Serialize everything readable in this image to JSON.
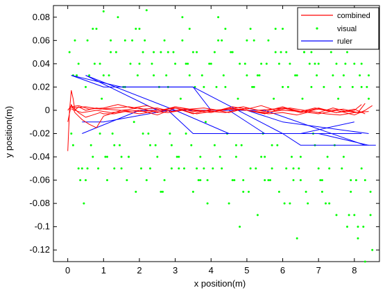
{
  "chart_data": {
    "type": "line",
    "xlabel": "x position(m)",
    "ylabel": "y position(m)",
    "xlim": [
      -0.4,
      8.7
    ],
    "ylim": [
      -0.13,
      0.09
    ],
    "xticks": [
      0,
      1,
      2,
      3,
      4,
      5,
      6,
      7,
      8
    ],
    "yticks": [
      -0.12,
      -0.1,
      -0.08,
      -0.06,
      -0.04,
      -0.02,
      0,
      0.02,
      0.04,
      0.06,
      0.08
    ],
    "ytick_labels": [
      "-0.12",
      "-0.1",
      "-0.08",
      "-0.06",
      "-0.04",
      "-0.02",
      "0",
      "0.02",
      "0.04",
      "0.06",
      "0.08"
    ],
    "grid": false,
    "legend_position": "top-right",
    "colors": {
      "combined": "#ff0000",
      "visual": "#00ff00",
      "ruler": "#0000ff"
    },
    "legend": [
      {
        "label": "combined",
        "kind": "line",
        "color": "#ff0000"
      },
      {
        "label": "visual",
        "kind": "dot",
        "color": "#00ff00"
      },
      {
        "label": "ruler",
        "kind": "line",
        "color": "#0000ff"
      }
    ],
    "ruler_series": [
      {
        "x": [
          0.1,
          1.0,
          3.0,
          3.5,
          6.0,
          6.5,
          8.6
        ],
        "y": [
          0.03,
          0.02,
          0.02,
          0.02,
          -0.02,
          -0.03,
          -0.03
        ]
      },
      {
        "x": [
          0.1,
          1.5,
          3.5,
          4.0,
          5.0,
          6.0,
          8.4
        ],
        "y": [
          0.03,
          0.02,
          0.02,
          0.0,
          0.0,
          -0.01,
          -0.02
        ]
      },
      {
        "x": [
          0.5,
          2.5,
          4.5,
          5.5,
          6.0,
          7.5,
          8.2
        ],
        "y": [
          0.03,
          0.0,
          0.0,
          -0.02,
          -0.02,
          -0.02,
          -0.02
        ]
      },
      {
        "x": [
          0.5,
          3.0,
          5.0,
          5.5,
          8.3
        ],
        "y": [
          0.03,
          0.0,
          0.0,
          0.0,
          -0.03
        ]
      },
      {
        "x": [
          0.4,
          1.0,
          2.8,
          3.5,
          5.0,
          6.5,
          8.0
        ],
        "y": [
          -0.01,
          -0.01,
          0.0,
          -0.02,
          -0.02,
          -0.02,
          -0.01
        ]
      },
      {
        "x": [
          0.4,
          2.0,
          3.0,
          4.5,
          7.0,
          8.4
        ],
        "y": [
          -0.02,
          0.0,
          0.0,
          -0.02,
          -0.02,
          -0.03
        ]
      }
    ],
    "combined_series": [
      {
        "x": [
          0.0,
          0.05,
          0.1,
          0.15,
          0.2,
          0.3,
          0.5,
          0.8,
          1.0,
          1.5,
          2.0,
          2.5,
          3.0,
          3.5,
          4.0,
          4.5,
          5.0,
          5.5,
          6.0,
          6.5,
          7.0,
          7.5,
          8.0,
          8.3,
          8.5
        ],
        "y": [
          -0.035,
          0.0,
          0.017,
          0.01,
          0.0,
          0.003,
          0.0,
          0.002,
          0.001,
          0.0,
          -0.001,
          0.0,
          0.002,
          -0.001,
          0.0,
          0.001,
          0.0,
          -0.002,
          0.0,
          -0.001,
          -0.003,
          0.0,
          -0.004,
          0.0,
          0.004
        ]
      },
      {
        "x": [
          0.0,
          0.1,
          0.2,
          0.4,
          0.6,
          0.8,
          1.0,
          1.5,
          2.0,
          2.5,
          3.0,
          3.5,
          4.0,
          4.5,
          5.0,
          5.5,
          6.0,
          6.5,
          7.0,
          7.5,
          8.0,
          8.2
        ],
        "y": [
          -0.01,
          0.005,
          -0.002,
          -0.008,
          -0.012,
          -0.015,
          -0.005,
          0.0,
          0.002,
          -0.002,
          0.003,
          0.0,
          -0.002,
          0.002,
          0.0,
          -0.003,
          0.002,
          -0.002,
          0.001,
          -0.002,
          0.0,
          0.005
        ]
      },
      {
        "x": [
          0.0,
          0.1,
          0.3,
          0.5,
          0.7,
          0.9,
          1.0,
          1.3,
          1.6,
          2.0,
          2.5,
          3.0,
          3.5,
          4.0,
          4.5,
          5.0,
          5.5,
          6.0,
          6.5,
          7.0,
          7.5,
          8.0,
          8.3
        ],
        "y": [
          0.0,
          0.004,
          -0.002,
          -0.006,
          -0.004,
          -0.002,
          -0.003,
          -0.003,
          -0.001,
          0.0,
          -0.004,
          0.002,
          -0.003,
          0.001,
          -0.002,
          0.002,
          -0.001,
          0.003,
          -0.002,
          0.002,
          -0.002,
          0.001,
          -0.003
        ]
      },
      {
        "x": [
          0.1,
          0.3,
          0.6,
          1.0,
          1.4,
          1.8,
          2.2,
          2.6,
          3.0,
          3.4,
          3.8,
          4.2,
          4.6,
          5.0,
          5.4,
          5.8,
          6.2,
          6.6,
          7.0,
          7.4,
          7.8,
          8.2
        ],
        "y": [
          0.003,
          0.004,
          0.001,
          0.002,
          0.005,
          0.002,
          0.004,
          0.0,
          0.003,
          0.001,
          0.002,
          0.0,
          0.003,
          0.001,
          0.004,
          0.0,
          0.002,
          0.0,
          -0.002,
          0.002,
          -0.001,
          -0.002
        ]
      },
      {
        "x": [
          0.1,
          0.4,
          0.8,
          1.2,
          1.6,
          2.0,
          2.4,
          2.8,
          3.2,
          3.6,
          4.0,
          4.4,
          4.8,
          5.2,
          5.6,
          6.0,
          6.4,
          6.8,
          7.2,
          7.6,
          8.0,
          8.4
        ],
        "y": [
          0.001,
          -0.002,
          0.0,
          -0.002,
          -0.001,
          -0.003,
          -0.001,
          -0.002,
          0.0,
          -0.003,
          -0.001,
          -0.002,
          0.001,
          -0.001,
          -0.003,
          -0.002,
          -0.004,
          -0.001,
          -0.003,
          -0.004,
          -0.002,
          -0.001
        ]
      },
      {
        "x": [
          0.1,
          0.5,
          0.9,
          1.3,
          1.7,
          2.1,
          2.5,
          2.9,
          3.3,
          3.7,
          4.1,
          4.5,
          4.9,
          5.3,
          5.7,
          6.1,
          6.5,
          6.9,
          7.3,
          7.7,
          8.1,
          8.3
        ],
        "y": [
          0.002,
          0.003,
          0.001,
          0.002,
          0.003,
          0.001,
          0.002,
          -0.001,
          0.001,
          0.0,
          -0.001,
          0.001,
          0.003,
          0.0,
          0.001,
          0.002,
          -0.001,
          0.002,
          0.0,
          0.001,
          -0.002,
          0.006
        ]
      }
    ],
    "visual_points_note": "",
    "visual_points": {
      "x": [
        0.05,
        0.15,
        0.3,
        0.4,
        0.55,
        0.7,
        0.8,
        0.9,
        1.0,
        1.1,
        1.2,
        1.3,
        1.4,
        1.5,
        1.6,
        1.7,
        1.8,
        1.9,
        2.0,
        2.1,
        2.2,
        2.3,
        2.4,
        2.5,
        2.6,
        2.7,
        2.8,
        2.9,
        3.0,
        3.1,
        3.2,
        3.3,
        3.4,
        3.5,
        3.6,
        3.7,
        3.8,
        3.9,
        4.0,
        4.1,
        4.2,
        4.3,
        4.4,
        4.5,
        4.6,
        4.7,
        4.8,
        4.9,
        5.0,
        5.1,
        5.2,
        5.3,
        5.4,
        5.5,
        5.6,
        5.7,
        5.8,
        5.9,
        6.0,
        6.1,
        6.2,
        6.3,
        6.4,
        6.5,
        6.6,
        6.7,
        6.8,
        6.9,
        7.0,
        7.1,
        7.2,
        7.3,
        7.4,
        7.5,
        7.6,
        7.7,
        7.8,
        7.9,
        8.0,
        8.1,
        8.2,
        8.3,
        8.4,
        8.5,
        0.1,
        0.25,
        0.35,
        0.5,
        0.65,
        0.75,
        0.85,
        0.95,
        1.05,
        1.15,
        1.25,
        1.35,
        1.45,
        1.55,
        1.65,
        1.75,
        1.85,
        1.95,
        2.05,
        2.15,
        2.25,
        2.35,
        2.45,
        2.55,
        2.65,
        2.75,
        2.85,
        2.95,
        3.05,
        3.15,
        3.25,
        3.35,
        3.45,
        3.55,
        3.65,
        3.75,
        3.85,
        3.95,
        4.05,
        4.15,
        4.25,
        4.35,
        4.45,
        4.55,
        4.65,
        4.75,
        4.85,
        4.95,
        5.05,
        5.15,
        5.25,
        5.35,
        5.45,
        5.55,
        5.65,
        5.75,
        5.85,
        5.95,
        6.05,
        6.15,
        6.25,
        6.35,
        6.45,
        6.55,
        6.65,
        6.75,
        6.85,
        6.95,
        7.05,
        7.15,
        7.25,
        7.35,
        7.45,
        7.55,
        7.65,
        7.75,
        7.85,
        7.95,
        8.05,
        8.15,
        8.25,
        8.35,
        8.45,
        0.2,
        0.45,
        0.6,
        1.0,
        1.5,
        2.0,
        2.2,
        2.8,
        3.2,
        3.6,
        4.4,
        4.8,
        5.2,
        5.6,
        6.0,
        6.4,
        6.8,
        7.2,
        7.6,
        8.0,
        8.3,
        0.3,
        0.7,
        1.1,
        1.6,
        2.4,
        2.6,
        3.4,
        3.8,
        4.2,
        4.6,
        5.0,
        5.4,
        5.8,
        6.2,
        6.6,
        7.0,
        7.4,
        7.8,
        8.2,
        8.4,
        0.5,
        0.9,
        1.3,
        1.9,
        2.3,
        2.7,
        3.1,
        3.5,
        3.9,
        4.3,
        4.7,
        5.1,
        5.5,
        5.9,
        6.3,
        6.7,
        7.1,
        7.5,
        7.9,
        8.1,
        0.15,
        0.55,
        1.2,
        1.7,
        2.1,
        2.9,
        3.3,
        3.7,
        4.1,
        4.9,
        5.3,
        5.7,
        6.1,
        6.5,
        6.9,
        7.3,
        7.7,
        8.2,
        8.45
      ],
      "y": [
        0.05,
        -0.03,
        0.04,
        -0.05,
        0.06,
        -0.04,
        0.07,
        -0.02,
        0.03,
        -0.06,
        0.05,
        -0.03,
        0.08,
        -0.05,
        0.02,
        -0.04,
        0.06,
        -0.07,
        0.04,
        -0.02,
        0.086,
        -0.05,
        0.03,
        -0.04,
        0.05,
        -0.06,
        0.02,
        -0.03,
        0.04,
        -0.05,
        0.06,
        -0.02,
        0.03,
        -0.07,
        0.05,
        -0.04,
        0.02,
        -0.06,
        0.04,
        -0.03,
        0.06,
        -0.05,
        0.02,
        -0.08,
        0.05,
        -0.03,
        0.04,
        -0.06,
        0.03,
        -0.05,
        0.02,
        -0.09,
        0.04,
        -0.04,
        0.06,
        -0.03,
        0.05,
        -0.07,
        0.02,
        -0.05,
        0.04,
        -0.06,
        0.03,
        -0.04,
        0.05,
        -0.08,
        0.02,
        -0.03,
        0.04,
        -0.06,
        0.07,
        -0.05,
        0.03,
        -0.09,
        0.02,
        -0.04,
        0.05,
        -0.07,
        0.04,
        -0.11,
        0.02,
        -0.06,
        0.03,
        -0.12,
        -0.02,
        0.03,
        -0.06,
        0.02,
        -0.03,
        0.04,
        -0.05,
        0.01,
        -0.04,
        0.03,
        -0.02,
        0.05,
        -0.03,
        0.02,
        -0.06,
        0.04,
        -0.01,
        0.03,
        -0.05,
        0.06,
        -0.02,
        0.04,
        -0.03,
        0.02,
        -0.07,
        0.03,
        -0.02,
        0.05,
        -0.04,
        0.01,
        -0.05,
        0.04,
        -0.03,
        0.02,
        -0.06,
        0.03,
        -0.01,
        0.04,
        -0.05,
        0.02,
        -0.04,
        0.03,
        -0.02,
        0.05,
        -0.06,
        0.01,
        -0.03,
        0.04,
        -0.07,
        0.02,
        -0.05,
        0.03,
        -0.02,
        0.04,
        -0.06,
        0.01,
        -0.03,
        0.05,
        -0.08,
        0.02,
        -0.04,
        0.03,
        -0.05,
        0.01,
        -0.07,
        0.04,
        -0.02,
        0.03,
        -0.06,
        0.02,
        -0.04,
        0.05,
        -0.03,
        0.01,
        -0.05,
        0.04,
        -0.09,
        0.02,
        -0.06,
        0.03,
        -0.1,
        0.02,
        -0.07,
        0.06,
        -0.08,
        0.03,
        0.085,
        -0.04,
        0.07,
        -0.06,
        0.05,
        0.08,
        -0.05,
        0.07,
        -0.1,
        0.06,
        -0.06,
        0.07,
        -0.11,
        0.05,
        -0.08,
        0.06,
        -0.09,
        -0.13,
        -0.05,
        0.07,
        -0.04,
        0.06,
        0.05,
        -0.07,
        0.07,
        -0.05,
        0.08,
        -0.06,
        0.06,
        -0.04,
        0.07,
        -0.08,
        0.05,
        -0.05,
        0.06,
        -0.1,
        0.04,
        0.01,
        -0.06,
        0.04,
        -0.05,
        0.07,
        -0.03,
        0.06,
        -0.04,
        0.05,
        -0.08,
        0.06,
        -0.04,
        0.07,
        -0.06,
        0.04,
        -0.05,
        0.06,
        -0.07,
        0.04,
        -0.06,
        -0.1,
        0.03,
        -0.05,
        0.06,
        -0.04,
        0.05,
        -0.05,
        0.04,
        -0.06,
        0.05,
        -0.07,
        0.03,
        -0.05,
        0.05,
        -0.06,
        0.04,
        -0.08,
        0.03,
        -0.05,
        -0.09
      ]
    }
  }
}
